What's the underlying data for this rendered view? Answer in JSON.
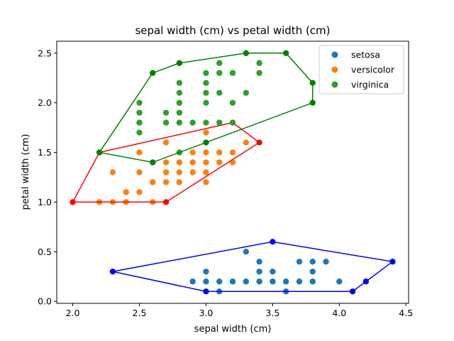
{
  "chart_data": {
    "type": "scatter",
    "title": "sepal width (cm) vs petal width (cm)",
    "xlabel": "sepal width (cm)",
    "ylabel": "petal width (cm)",
    "xlim": [
      1.88,
      4.52
    ],
    "ylim": [
      -0.02,
      2.62
    ],
    "xticks": [
      2.0,
      2.5,
      3.0,
      3.5,
      4.0,
      4.5
    ],
    "xtick_labels": [
      "2.0",
      "2.5",
      "3.0",
      "3.5",
      "4.0",
      "4.5"
    ],
    "yticks": [
      0.0,
      0.5,
      1.0,
      1.5,
      2.0,
      2.5
    ],
    "ytick_labels": [
      "0.0",
      "0.5",
      "1.0",
      "1.5",
      "2.0",
      "2.5"
    ],
    "grid": false,
    "legend_position": "top-right",
    "series": [
      {
        "name": "setosa",
        "color": "#1f77b4",
        "hull_color": "#0000ff",
        "points": [
          [
            2.3,
            0.3
          ],
          [
            2.9,
            0.2
          ],
          [
            3.0,
            0.1
          ],
          [
            3.0,
            0.2
          ],
          [
            3.0,
            0.3
          ],
          [
            3.1,
            0.1
          ],
          [
            3.1,
            0.2
          ],
          [
            3.2,
            0.2
          ],
          [
            3.3,
            0.5
          ],
          [
            3.3,
            0.2
          ],
          [
            3.4,
            0.2
          ],
          [
            3.4,
            0.3
          ],
          [
            3.4,
            0.4
          ],
          [
            3.5,
            0.2
          ],
          [
            3.5,
            0.3
          ],
          [
            3.5,
            0.6
          ],
          [
            3.6,
            0.1
          ],
          [
            3.6,
            0.2
          ],
          [
            3.7,
            0.2
          ],
          [
            3.7,
            0.4
          ],
          [
            3.8,
            0.2
          ],
          [
            3.8,
            0.3
          ],
          [
            3.8,
            0.4
          ],
          [
            3.9,
            0.4
          ],
          [
            4.0,
            0.2
          ],
          [
            4.1,
            0.1
          ],
          [
            4.2,
            0.2
          ],
          [
            4.4,
            0.4
          ]
        ],
        "hull": [
          [
            2.3,
            0.3
          ],
          [
            3.0,
            0.1
          ],
          [
            4.1,
            0.1
          ],
          [
            4.2,
            0.2
          ],
          [
            4.4,
            0.4
          ],
          [
            3.5,
            0.6
          ],
          [
            2.3,
            0.3
          ]
        ]
      },
      {
        "name": "versicolor",
        "color": "#ff7f0e",
        "hull_color": "#ff0000",
        "points": [
          [
            2.0,
            1.0
          ],
          [
            2.2,
            1.0
          ],
          [
            2.2,
            1.5
          ],
          [
            2.3,
            1.0
          ],
          [
            2.3,
            1.3
          ],
          [
            2.4,
            1.0
          ],
          [
            2.4,
            1.1
          ],
          [
            2.5,
            1.1
          ],
          [
            2.5,
            1.3
          ],
          [
            2.5,
            1.5
          ],
          [
            2.6,
            1.0
          ],
          [
            2.6,
            1.2
          ],
          [
            2.6,
            1.4
          ],
          [
            2.7,
            1.0
          ],
          [
            2.7,
            1.2
          ],
          [
            2.7,
            1.3
          ],
          [
            2.7,
            1.4
          ],
          [
            2.7,
            1.6
          ],
          [
            2.8,
            1.3
          ],
          [
            2.8,
            1.5
          ],
          [
            2.8,
            1.4
          ],
          [
            2.8,
            1.2
          ],
          [
            2.9,
            1.3
          ],
          [
            2.9,
            1.4
          ],
          [
            2.9,
            1.5
          ],
          [
            3.0,
            1.2
          ],
          [
            3.0,
            1.3
          ],
          [
            3.0,
            1.4
          ],
          [
            3.0,
            1.5
          ],
          [
            3.0,
            1.7
          ],
          [
            3.1,
            1.4
          ],
          [
            3.1,
            1.5
          ],
          [
            3.2,
            1.4
          ],
          [
            3.2,
            1.5
          ],
          [
            3.2,
            1.8
          ],
          [
            3.3,
            1.6
          ],
          [
            3.4,
            1.6
          ]
        ],
        "hull": [
          [
            2.0,
            1.0
          ],
          [
            2.7,
            1.0
          ],
          [
            3.4,
            1.6
          ],
          [
            3.2,
            1.8
          ],
          [
            2.2,
            1.5
          ],
          [
            2.0,
            1.0
          ]
        ]
      },
      {
        "name": "virginica",
        "color": "#2ca02c",
        "hull_color": "#008000",
        "points": [
          [
            2.2,
            1.5
          ],
          [
            2.5,
            1.7
          ],
          [
            2.5,
            1.8
          ],
          [
            2.5,
            1.9
          ],
          [
            2.5,
            2.0
          ],
          [
            2.6,
            1.4
          ],
          [
            2.6,
            2.3
          ],
          [
            2.7,
            1.8
          ],
          [
            2.7,
            1.9
          ],
          [
            2.8,
            1.5
          ],
          [
            2.8,
            1.8
          ],
          [
            2.8,
            1.9
          ],
          [
            2.8,
            2.0
          ],
          [
            2.8,
            2.1
          ],
          [
            2.8,
            2.2
          ],
          [
            2.8,
            2.4
          ],
          [
            2.9,
            1.8
          ],
          [
            3.0,
            1.6
          ],
          [
            3.0,
            1.8
          ],
          [
            3.0,
            2.0
          ],
          [
            3.0,
            2.1
          ],
          [
            3.0,
            2.2
          ],
          [
            3.0,
            2.3
          ],
          [
            3.1,
            1.8
          ],
          [
            3.1,
            2.1
          ],
          [
            3.1,
            2.3
          ],
          [
            3.1,
            2.4
          ],
          [
            3.2,
            1.8
          ],
          [
            3.2,
            2.0
          ],
          [
            3.2,
            2.3
          ],
          [
            3.3,
            2.1
          ],
          [
            3.3,
            2.5
          ],
          [
            3.4,
            2.3
          ],
          [
            3.4,
            2.4
          ],
          [
            3.6,
            2.5
          ],
          [
            3.8,
            2.0
          ],
          [
            3.8,
            2.2
          ]
        ],
        "hull": [
          [
            2.2,
            1.5
          ],
          [
            2.6,
            2.3
          ],
          [
            2.8,
            2.4
          ],
          [
            3.3,
            2.5
          ],
          [
            3.6,
            2.5
          ],
          [
            3.8,
            2.2
          ],
          [
            3.8,
            2.0
          ],
          [
            3.0,
            1.6
          ],
          [
            2.6,
            1.4
          ],
          [
            2.2,
            1.5
          ]
        ]
      }
    ]
  }
}
